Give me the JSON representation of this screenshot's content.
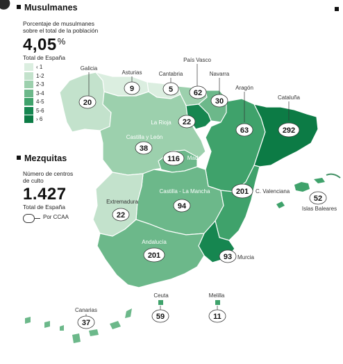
{
  "colors": {
    "lt1": "#dbeee0",
    "c1_2": "#c3e2cc",
    "c2_3": "#9cd0ad",
    "c3_4": "#6cb88a",
    "c4_5": "#3fa26b",
    "c5_6": "#168650",
    "gt6": "#0c7b45"
  },
  "musulmanes": {
    "title": "Musulmanes",
    "subtitle_line1": "Porcentaje de musulmanes",
    "subtitle_line2": "sobre el total de la población",
    "total_value": "4,05",
    "total_unit": "%",
    "total_label": "Total de España",
    "legend": [
      {
        "label": "‹ 1",
        "color": "#dbeee0"
      },
      {
        "label": "1-2",
        "color": "#c3e2cc"
      },
      {
        "label": "2-3",
        "color": "#9cd0ad"
      },
      {
        "label": "3-4",
        "color": "#6cb88a"
      },
      {
        "label": "4-5",
        "color": "#3fa26b"
      },
      {
        "label": "5-6",
        "color": "#168650"
      },
      {
        "label": "› 6",
        "color": "#0c7b45"
      }
    ]
  },
  "mezquitas": {
    "title": "Mezquitas",
    "subtitle_line1": "Número de centros",
    "subtitle_line2": "de culto",
    "total_value": "1.427",
    "total_label": "Total de España",
    "ccaa_key": "Por CCAA"
  },
  "regions": [
    {
      "name": "Galicia",
      "count": "20",
      "band": "1-2"
    },
    {
      "name": "Asturias",
      "count": "9",
      "band": "‹ 1"
    },
    {
      "name": "Cantabria",
      "count": "5",
      "band": "‹ 1"
    },
    {
      "name": "País Vasco",
      "count": "62",
      "band": "2-3"
    },
    {
      "name": "Navarra",
      "count": "30",
      "band": "3-4"
    },
    {
      "name": "Aragón",
      "count": "63",
      "band": "4-5"
    },
    {
      "name": "Cataluña",
      "count": "292",
      "band": "› 6"
    },
    {
      "name": "La Rioja",
      "count": "22",
      "band": "5-6"
    },
    {
      "name": "Castilla y León",
      "count": "38",
      "band": "2-3"
    },
    {
      "name": "Madrid",
      "count": "116",
      "band": "3-4"
    },
    {
      "name": "Castilla - La Mancha",
      "count": "94",
      "band": "3-4"
    },
    {
      "name": "C. Valenciana",
      "count": "201",
      "band": "4-5"
    },
    {
      "name": "Islas Baleares",
      "count": "52",
      "band": "4-5"
    },
    {
      "name": "Extremadura",
      "count": "22",
      "band": "1-2"
    },
    {
      "name": "Andalucía",
      "count": "201",
      "band": "3-4"
    },
    {
      "name": "Murcia",
      "count": "93",
      "band": "5-6"
    },
    {
      "name": "Ceuta",
      "count": "59",
      "band": "4-5"
    },
    {
      "name": "Melilla",
      "count": "11",
      "band": "4-5"
    },
    {
      "name": "Canarias",
      "count": "37",
      "band": "3-4"
    }
  ]
}
